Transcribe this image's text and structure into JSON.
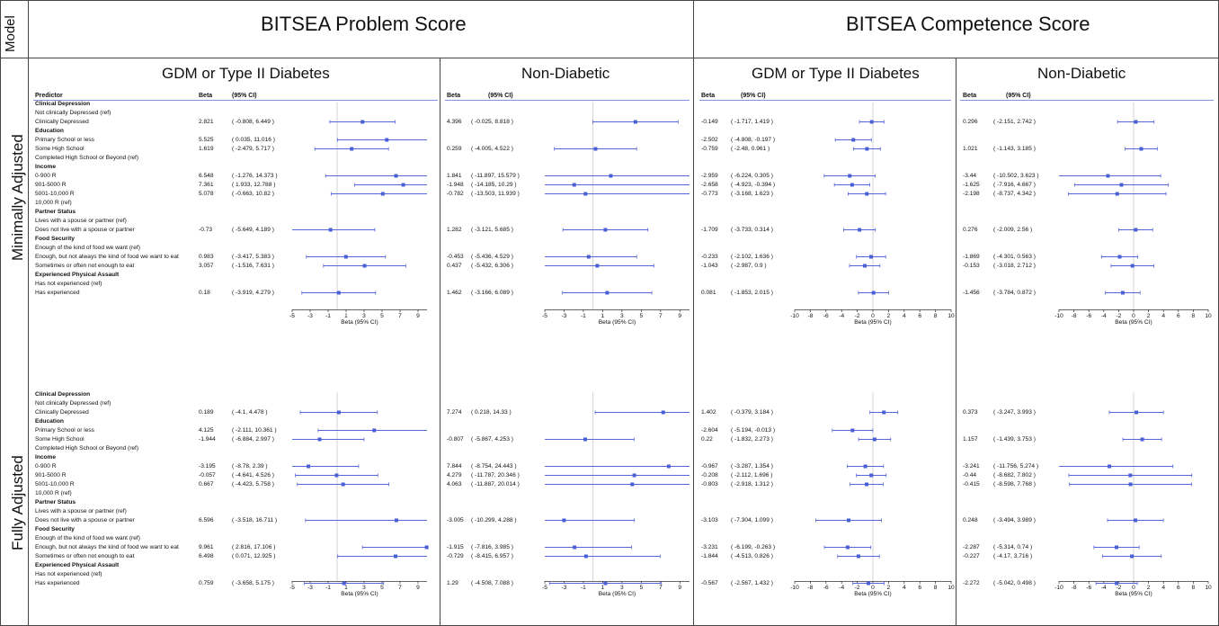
{
  "model_label": "Model",
  "titles": {
    "problem": "BITSEA Problem Score",
    "competence": "BITSEA Competence Score"
  },
  "subtitles": [
    "GDM or Type II Diabetes",
    "Non-Diabetic",
    "GDM or Type II Diabetes",
    "Non-Diabetic"
  ],
  "models": [
    "Minimally Adjusted",
    "Fully Adjusted"
  ],
  "headers": {
    "predictor": "Predictor",
    "beta": "Beta",
    "ci": "(95% CI)"
  },
  "predictor_rows": [
    {
      "label": "Clinical Depression",
      "section": true
    },
    {
      "label": "Not clinically Depressed (ref)"
    },
    {
      "label": "Clinically Depressed"
    },
    {
      "label": "Education",
      "section": true
    },
    {
      "label": "Primary School or less"
    },
    {
      "label": "Some High School"
    },
    {
      "label": "Completed High School or Beyond (ref)"
    },
    {
      "label": "Income",
      "section": true
    },
    {
      "label": "0-900 R"
    },
    {
      "label": "901-5000 R"
    },
    {
      "label": "5001-10,000 R"
    },
    {
      "label": "10,000 R (ref)"
    },
    {
      "label": "Partner Status",
      "section": true
    },
    {
      "label": "Lives with a spouse or partner (ref)"
    },
    {
      "label": "Does not live with a spouse or partner"
    },
    {
      "label": "Food Security",
      "section": true
    },
    {
      "label": "Enough of the kind of food we want (ref)"
    },
    {
      "label": "Enough, but not always the kind of food we want to eat"
    },
    {
      "label": "Sometimes or often not enough to eat"
    },
    {
      "label": "Experienced Physical Assault",
      "section": true
    },
    {
      "label": "Has not experienced (ref)"
    },
    {
      "label": "Has experienced"
    }
  ],
  "axis_label": "Beta (95% CI)",
  "chart_data": [
    {
      "type": "forest",
      "model": "Minimally Adjusted",
      "outcome": "BITSEA Problem Score",
      "group": "GDM or Type II Diabetes",
      "xlim": [
        -5,
        10
      ],
      "xticks": [
        "-5",
        "-3",
        "-1",
        "1",
        "3",
        "5",
        "7",
        "9"
      ],
      "points": [
        {
          "row": 2,
          "beta": "2.821",
          "ci": "( -0.808, 6.449 )",
          "est": 2.821,
          "lo": -0.808,
          "hi": 6.449
        },
        {
          "row": 4,
          "beta": "5.525",
          "ci": "( 0.035, 11.016 )",
          "est": 5.525,
          "lo": 0.035,
          "hi": 11.016
        },
        {
          "row": 5,
          "beta": "1.619",
          "ci": "( -2.479, 5.717 )",
          "est": 1.619,
          "lo": -2.479,
          "hi": 5.717
        },
        {
          "row": 8,
          "beta": "6.548",
          "ci": "( -1.276, 14.373 )",
          "est": 6.548,
          "lo": -1.276,
          "hi": 14.373
        },
        {
          "row": 9,
          "beta": "7.361",
          "ci": "( 1.933, 12.788 )",
          "est": 7.361,
          "lo": 1.933,
          "hi": 12.788
        },
        {
          "row": 10,
          "beta": "5.078",
          "ci": "( -0.663, 10.82 )",
          "est": 5.078,
          "lo": -0.663,
          "hi": 10.82
        },
        {
          "row": 14,
          "beta": "-0.73",
          "ci": "( -5.649, 4.189 )",
          "est": -0.73,
          "lo": -5.649,
          "hi": 4.189
        },
        {
          "row": 17,
          "beta": "0.983",
          "ci": "( -3.417, 5.383 )",
          "est": 0.983,
          "lo": -3.417,
          "hi": 5.383
        },
        {
          "row": 18,
          "beta": "3.057",
          "ci": "( -1.516, 7.631 )",
          "est": 3.057,
          "lo": -1.516,
          "hi": 7.631
        },
        {
          "row": 21,
          "beta": "0.18",
          "ci": "( -3.919, 4.279 )",
          "est": 0.18,
          "lo": -3.919,
          "hi": 4.279
        }
      ]
    },
    {
      "type": "forest",
      "model": "Minimally Adjusted",
      "outcome": "BITSEA Problem Score",
      "group": "Non-Diabetic",
      "xlim": [
        -5,
        10
      ],
      "xticks": [
        "-5",
        "-3",
        "-1",
        "1",
        "3",
        "5",
        "7",
        "9"
      ],
      "points": [
        {
          "row": 2,
          "beta": "4.396",
          "ci": "( -0.025, 8.818 )",
          "est": 4.396,
          "lo": -0.025,
          "hi": 8.818
        },
        {
          "row": 5,
          "beta": "0.259",
          "ci": "( -4.005, 4.522 )",
          "est": 0.259,
          "lo": -4.005,
          "hi": 4.522
        },
        {
          "row": 8,
          "beta": "1.841",
          "ci": "( -11.897, 15.579 )",
          "est": 1.841,
          "lo": -11.897,
          "hi": 15.579
        },
        {
          "row": 9,
          "beta": "-1.948",
          "ci": "( -14.185, 10.29 )",
          "est": -1.948,
          "lo": -14.185,
          "hi": 10.29
        },
        {
          "row": 10,
          "beta": "-0.782",
          "ci": "( -13.503, 11.939 )",
          "est": -0.782,
          "lo": -13.503,
          "hi": 11.939
        },
        {
          "row": 14,
          "beta": "1.282",
          "ci": "( -3.121, 5.685 )",
          "est": 1.282,
          "lo": -3.121,
          "hi": 5.685
        },
        {
          "row": 17,
          "beta": "-0.453",
          "ci": "( -5.436, 4.529 )",
          "est": -0.453,
          "lo": -5.436,
          "hi": 4.529
        },
        {
          "row": 18,
          "beta": "0.437",
          "ci": "( -5.432, 6.306 )",
          "est": 0.437,
          "lo": -5.432,
          "hi": 6.306
        },
        {
          "row": 21,
          "beta": "1.462",
          "ci": "( -3.166, 6.089 )",
          "est": 1.462,
          "lo": -3.166,
          "hi": 6.089
        }
      ]
    },
    {
      "type": "forest",
      "model": "Minimally Adjusted",
      "outcome": "BITSEA Competence Score",
      "group": "GDM or Type II Diabetes",
      "xlim": [
        -10,
        10
      ],
      "xticks": [
        "-10",
        "-8",
        "-6",
        "-4",
        "-2",
        "0",
        "2",
        "4",
        "6",
        "8",
        "10"
      ],
      "points": [
        {
          "row": 2,
          "beta": "-0.149",
          "ci": "( -1.717, 1.419 )",
          "est": -0.149,
          "lo": -1.717,
          "hi": 1.419
        },
        {
          "row": 4,
          "beta": "-2.502",
          "ci": "( -4.808, -0.197 )",
          "est": -2.502,
          "lo": -4.808,
          "hi": -0.197
        },
        {
          "row": 5,
          "beta": "-0.759",
          "ci": "( -2.48, 0.961 )",
          "est": -0.759,
          "lo": -2.48,
          "hi": 0.961
        },
        {
          "row": 8,
          "beta": "-2.959",
          "ci": "( -6.224, 0.305 )",
          "est": -2.959,
          "lo": -6.224,
          "hi": 0.305
        },
        {
          "row": 9,
          "beta": "-2.658",
          "ci": "( -4.923, -0.394 )",
          "est": -2.658,
          "lo": -4.923,
          "hi": -0.394
        },
        {
          "row": 10,
          "beta": "-0.773",
          "ci": "( -3.168, 1.623 )",
          "est": -0.773,
          "lo": -3.168,
          "hi": 1.623
        },
        {
          "row": 14,
          "beta": "-1.709",
          "ci": "( -3.733, 0.314 )",
          "est": -1.709,
          "lo": -3.733,
          "hi": 0.314
        },
        {
          "row": 17,
          "beta": "-0.233",
          "ci": "( -2.102, 1.636 )",
          "est": -0.233,
          "lo": -2.102,
          "hi": 1.636
        },
        {
          "row": 18,
          "beta": "-1.043",
          "ci": "( -2.987, 0.9 )",
          "est": -1.043,
          "lo": -2.987,
          "hi": 0.9
        },
        {
          "row": 21,
          "beta": "0.081",
          "ci": "( -1.853, 2.015 )",
          "est": 0.081,
          "lo": -1.853,
          "hi": 2.015
        }
      ]
    },
    {
      "type": "forest",
      "model": "Minimally Adjusted",
      "outcome": "BITSEA Competence Score",
      "group": "Non-Diabetic",
      "xlim": [
        -10,
        10
      ],
      "xticks": [
        "-10",
        "-8",
        "-6",
        "-4",
        "-2",
        "0",
        "2",
        "4",
        "6",
        "8",
        "10"
      ],
      "points": [
        {
          "row": 2,
          "beta": "0.296",
          "ci": "( -2.151, 2.742 )",
          "est": 0.296,
          "lo": -2.151,
          "hi": 2.742
        },
        {
          "row": 5,
          "beta": "1.021",
          "ci": "( -1.143, 3.185 )",
          "est": 1.021,
          "lo": -1.143,
          "hi": 3.185
        },
        {
          "row": 8,
          "beta": "-3.44",
          "ci": "( -10.502, 3.623 )",
          "est": -3.44,
          "lo": -10.502,
          "hi": 3.623
        },
        {
          "row": 9,
          "beta": "-1.625",
          "ci": "( -7.916, 4.667 )",
          "est": -1.625,
          "lo": -7.916,
          "hi": 4.667
        },
        {
          "row": 10,
          "beta": "-2.198",
          "ci": "( -8.737, 4.342 )",
          "est": -2.198,
          "lo": -8.737,
          "hi": 4.342
        },
        {
          "row": 14,
          "beta": "0.276",
          "ci": "( -2.009, 2.56 )",
          "est": 0.276,
          "lo": -2.009,
          "hi": 2.56
        },
        {
          "row": 17,
          "beta": "-1.869",
          "ci": "( -4.301, 0.563 )",
          "est": -1.869,
          "lo": -4.301,
          "hi": 0.563
        },
        {
          "row": 18,
          "beta": "-0.153",
          "ci": "( -3.018, 2.712 )",
          "est": -0.153,
          "lo": -3.018,
          "hi": 2.712
        },
        {
          "row": 21,
          "beta": "-1.456",
          "ci": "( -3.784, 0.872 )",
          "est": -1.456,
          "lo": -3.784,
          "hi": 0.872
        }
      ]
    },
    {
      "type": "forest",
      "model": "Fully Adjusted",
      "outcome": "BITSEA Problem Score",
      "group": "GDM or Type II Diabetes",
      "xlim": [
        -5,
        10
      ],
      "xticks": [
        "-5",
        "-3",
        "-1",
        "1",
        "3",
        "5",
        "7",
        "9"
      ],
      "points": [
        {
          "row": 2,
          "beta": "0.189",
          "ci": "( -4.1, 4.478 )",
          "est": 0.189,
          "lo": -4.1,
          "hi": 4.478
        },
        {
          "row": 4,
          "beta": "4.125",
          "ci": "( -2.111, 10.361 )",
          "est": 4.125,
          "lo": -2.111,
          "hi": 10.361
        },
        {
          "row": 5,
          "beta": "-1.944",
          "ci": "( -6.884, 2.997 )",
          "est": -1.944,
          "lo": -6.884,
          "hi": 2.997
        },
        {
          "row": 8,
          "beta": "-3.195",
          "ci": "( -8.78, 2.39 )",
          "est": -3.195,
          "lo": -8.78,
          "hi": 2.39
        },
        {
          "row": 9,
          "beta": "-0.057",
          "ci": "( -4.641, 4.526 )",
          "est": -0.057,
          "lo": -4.641,
          "hi": 4.526
        },
        {
          "row": 10,
          "beta": "0.667",
          "ci": "( -4.423, 5.758 )",
          "est": 0.667,
          "lo": -4.423,
          "hi": 5.758
        },
        {
          "row": 14,
          "beta": "6.596",
          "ci": "( -3.518, 16.711 )",
          "est": 6.596,
          "lo": -3.518,
          "hi": 16.711
        },
        {
          "row": 17,
          "beta": "9.961",
          "ci": "( 2.816, 17.106 )",
          "est": 9.961,
          "lo": 2.816,
          "hi": 17.106
        },
        {
          "row": 18,
          "beta": "6.498",
          "ci": "( 0.071, 12.925 )",
          "est": 6.498,
          "lo": 0.071,
          "hi": 12.925
        },
        {
          "row": 21,
          "beta": "0.759",
          "ci": "( -3.658, 5.175 )",
          "est": 0.759,
          "lo": -3.658,
          "hi": 5.175
        }
      ]
    },
    {
      "type": "forest",
      "model": "Fully Adjusted",
      "outcome": "BITSEA Problem Score",
      "group": "Non-Diabetic",
      "xlim": [
        -5,
        10
      ],
      "xticks": [
        "-5",
        "-3",
        "-1",
        "1",
        "3",
        "5",
        "7",
        "9"
      ],
      "points": [
        {
          "row": 2,
          "beta": "7.274",
          "ci": "( 0.218, 14.33 )",
          "est": 7.274,
          "lo": 0.218,
          "hi": 14.33
        },
        {
          "row": 5,
          "beta": "-0.807",
          "ci": "( -5.867, 4.253 )",
          "est": -0.807,
          "lo": -5.867,
          "hi": 4.253
        },
        {
          "row": 8,
          "beta": "7.844",
          "ci": "( -8.754, 24.443 )",
          "est": 7.844,
          "lo": -8.754,
          "hi": 24.443
        },
        {
          "row": 9,
          "beta": "4.279",
          "ci": "( -11.787, 20.346 )",
          "est": 4.279,
          "lo": -11.787,
          "hi": 20.346
        },
        {
          "row": 10,
          "beta": "4.063",
          "ci": "( -11.887, 20.014 )",
          "est": 4.063,
          "lo": -11.887,
          "hi": 20.014
        },
        {
          "row": 14,
          "beta": "-3.005",
          "ci": "( -10.299, 4.288 )",
          "est": -3.005,
          "lo": -10.299,
          "hi": 4.288
        },
        {
          "row": 17,
          "beta": "-1.915",
          "ci": "( -7.816, 3.985 )",
          "est": -1.915,
          "lo": -7.816,
          "hi": 3.985
        },
        {
          "row": 18,
          "beta": "-0.729",
          "ci": "( -8.415, 6.957 )",
          "est": -0.729,
          "lo": -8.415,
          "hi": 6.957
        },
        {
          "row": 21,
          "beta": "1.29",
          "ci": "( -4.508, 7.088 )",
          "est": 1.29,
          "lo": -4.508,
          "hi": 7.088
        }
      ]
    },
    {
      "type": "forest",
      "model": "Fully Adjusted",
      "outcome": "BITSEA Competence Score",
      "group": "GDM or Type II Diabetes",
      "xlim": [
        -10,
        10
      ],
      "xticks": [
        "-10",
        "-8",
        "-6",
        "-4",
        "-2",
        "0",
        "2",
        "4",
        "6",
        "8",
        "10"
      ],
      "points": [
        {
          "row": 2,
          "beta": "1.402",
          "ci": "( -0.379, 3.184 )",
          "est": 1.402,
          "lo": -0.379,
          "hi": 3.184
        },
        {
          "row": 4,
          "beta": "-2.604",
          "ci": "( -5.194, -0.013 )",
          "est": -2.604,
          "lo": -5.194,
          "hi": -0.013
        },
        {
          "row": 5,
          "beta": "0.22",
          "ci": "( -1.832, 2.273 )",
          "est": 0.22,
          "lo": -1.832,
          "hi": 2.273
        },
        {
          "row": 8,
          "beta": "-0.967",
          "ci": "( -3.287, 1.354 )",
          "est": -0.967,
          "lo": -3.287,
          "hi": 1.354
        },
        {
          "row": 9,
          "beta": "-0.208",
          "ci": "( -2.112, 1.696 )",
          "est": -0.208,
          "lo": -2.112,
          "hi": 1.696
        },
        {
          "row": 10,
          "beta": "-0.803",
          "ci": "( -2.918, 1.312 )",
          "est": -0.803,
          "lo": -2.918,
          "hi": 1.312
        },
        {
          "row": 14,
          "beta": "-3.103",
          "ci": "( -7.304, 1.099 )",
          "est": -3.103,
          "lo": -7.304,
          "hi": 1.099
        },
        {
          "row": 17,
          "beta": "-3.231",
          "ci": "( -6.199, -0.263 )",
          "est": -3.231,
          "lo": -6.199,
          "hi": -0.263
        },
        {
          "row": 18,
          "beta": "-1.844",
          "ci": "( -4.513, 0.826 )",
          "est": -1.844,
          "lo": -4.513,
          "hi": 0.826
        },
        {
          "row": 21,
          "beta": "-0.567",
          "ci": "( -2.567, 1.432 )",
          "est": -0.567,
          "lo": -2.567,
          "hi": 1.432
        }
      ]
    },
    {
      "type": "forest",
      "model": "Fully Adjusted",
      "outcome": "BITSEA Competence Score",
      "group": "Non-Diabetic",
      "xlim": [
        -10,
        10
      ],
      "xticks": [
        "-10",
        "-8",
        "-6",
        "-4",
        "-2",
        "0",
        "2",
        "4",
        "6",
        "8",
        "10"
      ],
      "points": [
        {
          "row": 2,
          "beta": "0.373",
          "ci": "( -3.247, 3.993 )",
          "est": 0.373,
          "lo": -3.247,
          "hi": 3.993
        },
        {
          "row": 5,
          "beta": "1.157",
          "ci": "( -1.439, 3.753 )",
          "est": 1.157,
          "lo": -1.439,
          "hi": 3.753
        },
        {
          "row": 8,
          "beta": "-3.241",
          "ci": "( -11.756, 5.274 )",
          "est": -3.241,
          "lo": -11.756,
          "hi": 5.274
        },
        {
          "row": 9,
          "beta": "-0.44",
          "ci": "( -8.682, 7.802 )",
          "est": -0.44,
          "lo": -8.682,
          "hi": 7.802
        },
        {
          "row": 10,
          "beta": "-0.415",
          "ci": "( -8.598, 7.768 )",
          "est": -0.415,
          "lo": -8.598,
          "hi": 7.768
        },
        {
          "row": 14,
          "beta": "0.248",
          "ci": "( -3.494, 3.989 )",
          "est": 0.248,
          "lo": -3.494,
          "hi": 3.989
        },
        {
          "row": 17,
          "beta": "-2.287",
          "ci": "( -5.314, 0.74 )",
          "est": -2.287,
          "lo": -5.314,
          "hi": 0.74
        },
        {
          "row": 18,
          "beta": "-0.227",
          "ci": "( -4.17, 3.716 )",
          "est": -0.227,
          "lo": -4.17,
          "hi": 3.716
        },
        {
          "row": 21,
          "beta": "-2.272",
          "ci": "( -5.042, 0.498 )",
          "est": -2.272,
          "lo": -5.042,
          "hi": 0.498
        }
      ]
    }
  ]
}
